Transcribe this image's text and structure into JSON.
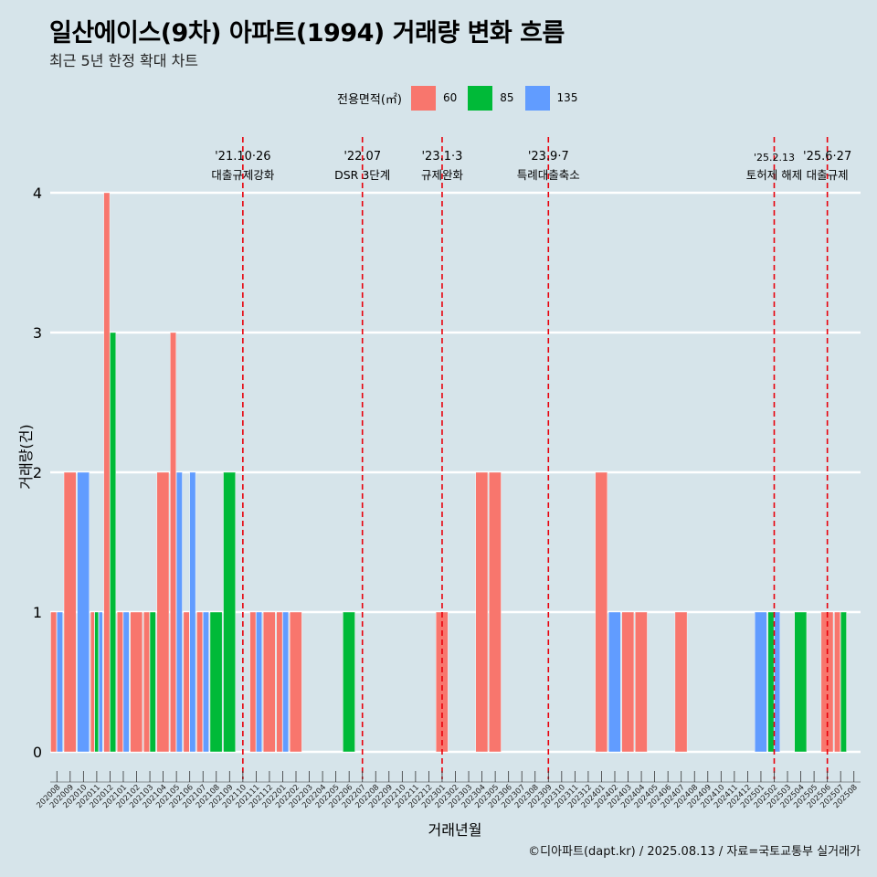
{
  "chart_data": {
    "type": "bar",
    "title": "일산에이스(9차) 아파트(1994) 거래량 변화 흐름",
    "subtitle": "최근 5년 한정 확대 차트",
    "xlabel": "거래년월",
    "ylabel": "거래량(건)",
    "ylim": [
      0,
      4
    ],
    "yticks": [
      0,
      1,
      2,
      3,
      4
    ],
    "grid": "horizontal",
    "legend_title": "전용면적(㎡)",
    "legend_position": "top",
    "categories": [
      "202008",
      "202009",
      "202010",
      "202011",
      "202012",
      "202101",
      "202102",
      "202103",
      "202104",
      "202105",
      "202106",
      "202107",
      "202108",
      "202109",
      "202110",
      "202111",
      "202112",
      "202201",
      "202202",
      "202203",
      "202204",
      "202205",
      "202206",
      "202207",
      "202208",
      "202209",
      "202210",
      "202211",
      "202212",
      "202301",
      "202302",
      "202303",
      "202304",
      "202305",
      "202306",
      "202307",
      "202308",
      "202309",
      "202310",
      "202311",
      "202312",
      "202401",
      "202402",
      "202403",
      "202404",
      "202405",
      "202406",
      "202407",
      "202408",
      "202409",
      "202410",
      "202411",
      "202412",
      "202501",
      "202502",
      "202503",
      "202504",
      "202505",
      "202506",
      "202507",
      "202508"
    ],
    "series": [
      {
        "name": "60",
        "color": "#f8766d",
        "values": [
          1,
          2,
          0,
          1,
          4,
          1,
          1,
          1,
          2,
          3,
          1,
          1,
          0,
          0,
          0,
          1,
          1,
          1,
          1,
          0,
          0,
          0,
          0,
          0,
          0,
          0,
          0,
          0,
          0,
          1,
          0,
          0,
          2,
          2,
          0,
          0,
          0,
          0,
          0,
          0,
          0,
          2,
          0,
          1,
          1,
          0,
          0,
          1,
          0,
          0,
          0,
          0,
          0,
          0,
          0,
          0,
          0,
          0,
          1,
          1,
          0
        ]
      },
      {
        "name": "85",
        "color": "#00ba38",
        "values": [
          0,
          0,
          0,
          1,
          3,
          0,
          0,
          1,
          0,
          0,
          0,
          0,
          1,
          2,
          0,
          0,
          0,
          0,
          0,
          0,
          0,
          0,
          1,
          0,
          0,
          0,
          0,
          0,
          0,
          0,
          0,
          0,
          0,
          0,
          0,
          0,
          0,
          0,
          0,
          0,
          0,
          0,
          0,
          0,
          0,
          0,
          0,
          0,
          0,
          0,
          0,
          0,
          0,
          0,
          1,
          0,
          1,
          0,
          0,
          1,
          0
        ]
      },
      {
        "name": "135",
        "color": "#619cff",
        "values": [
          1,
          0,
          2,
          1,
          0,
          1,
          0,
          0,
          0,
          2,
          2,
          1,
          0,
          0,
          0,
          1,
          0,
          1,
          0,
          0,
          0,
          0,
          0,
          0,
          0,
          0,
          0,
          0,
          0,
          0,
          0,
          0,
          0,
          0,
          0,
          0,
          0,
          0,
          0,
          0,
          0,
          0,
          1,
          0,
          0,
          0,
          0,
          0,
          0,
          0,
          0,
          0,
          0,
          1,
          1,
          0,
          0,
          0,
          0,
          0,
          0
        ]
      }
    ],
    "annotations": [
      {
        "at": "202110",
        "line1": "'21.10·26",
        "line2": "대출규제강화"
      },
      {
        "at": "202207",
        "line1": "'22.07",
        "line2": "DSR 3단계"
      },
      {
        "at": "202301",
        "line1": "'23.1·3",
        "line2": "규제완화"
      },
      {
        "at": "202309",
        "line1": "'23.9·7",
        "line2": "특례대출축소"
      },
      {
        "at": "202502",
        "line1": "'25.2.13",
        "line2": "토허제 해제"
      },
      {
        "at": "202506",
        "line1": "'25.6·27",
        "line2": "대출규제"
      }
    ],
    "annotation_line_color": "#e8000b"
  },
  "caption": "©디아파트(dapt.kr) / 2025.08.13 / 자료=국토교통부 실거래가"
}
